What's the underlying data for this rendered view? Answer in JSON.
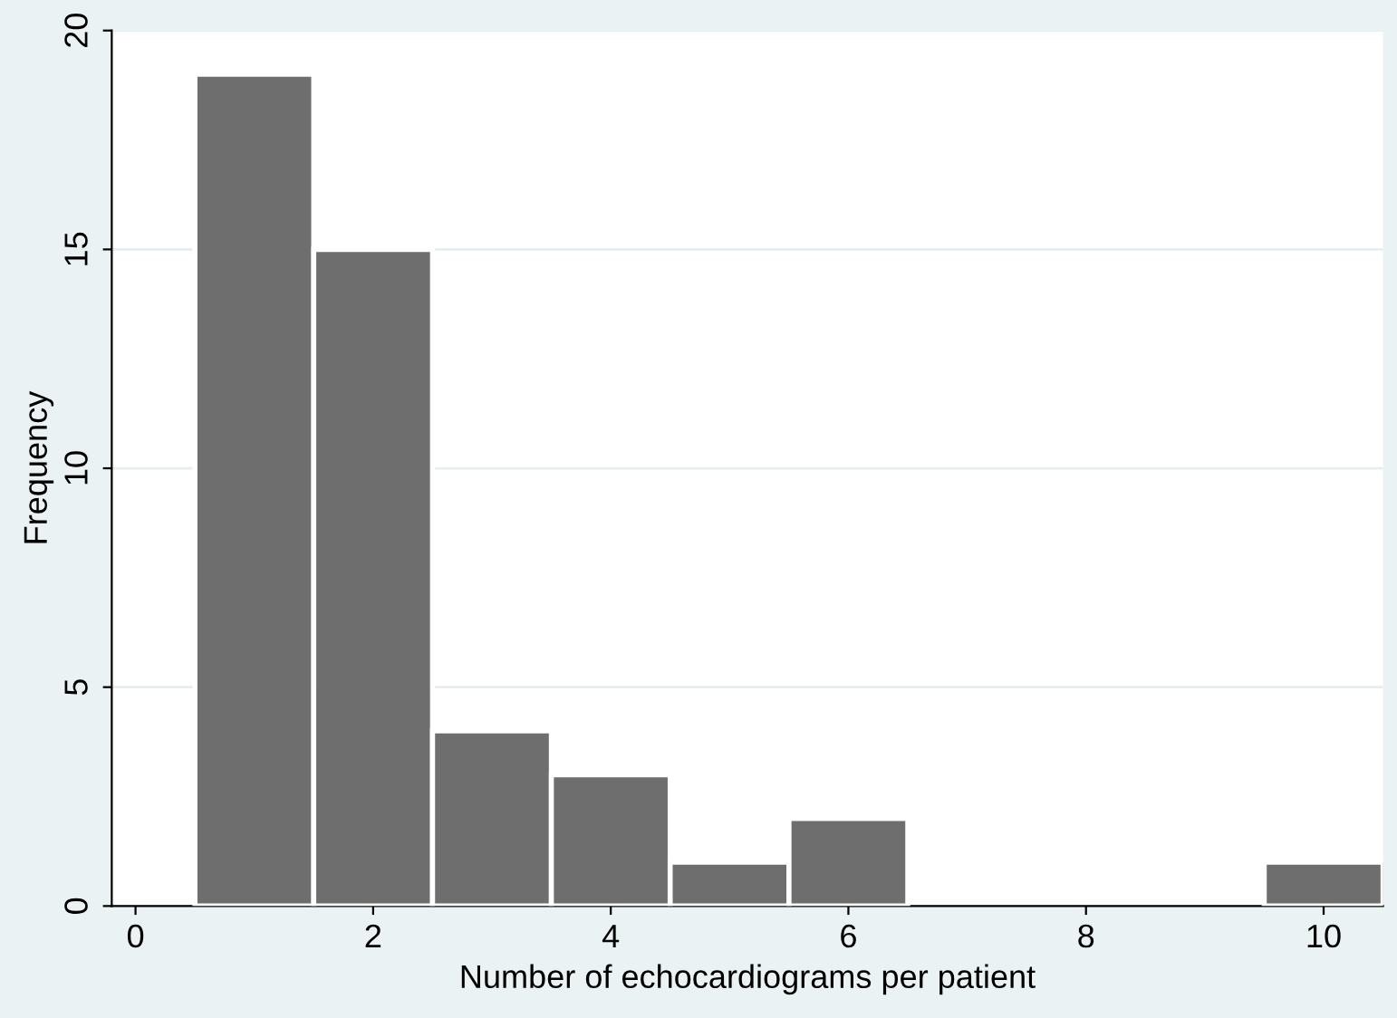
{
  "chart_data": {
    "type": "histogram",
    "xlabel": "Number of echocardiograms per patient",
    "ylabel": "Frequency",
    "bins": [
      0.5,
      1.5,
      2.5,
      3.5,
      4.5,
      5.5,
      6.5,
      7.5,
      8.5,
      9.5,
      10.5
    ],
    "values": [
      19,
      15,
      4,
      3,
      1,
      2,
      0,
      0,
      0,
      1
    ],
    "color": "#6e6e6e",
    "xlim": [
      -0.2,
      10.5
    ],
    "xticks": [
      0,
      2,
      4,
      6,
      8,
      10
    ],
    "ylim": [
      0,
      20
    ],
    "yticks": [
      0,
      5,
      10,
      15,
      20
    ],
    "grid": "y"
  }
}
